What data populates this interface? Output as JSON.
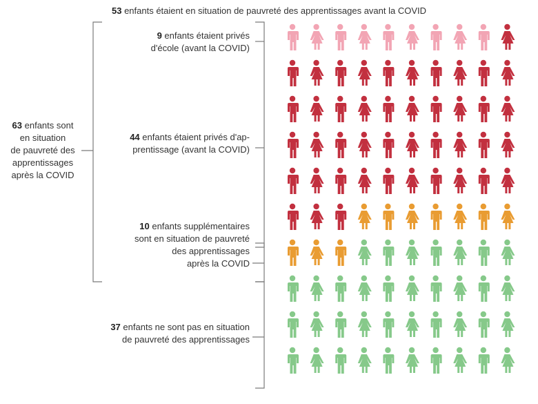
{
  "title": {
    "count": "53",
    "text": "enfants étaient en situation de pauvreté des apprentissages avant la COVID"
  },
  "groups": {
    "school": {
      "count": "9",
      "lines": [
        "enfants étaient privés",
        "d'école (avant la COVID)"
      ]
    },
    "learning": {
      "count": "44",
      "lines": [
        "enfants étaient privés d'ap-",
        "prentissage (avant la COVID)"
      ]
    },
    "additional": {
      "count": "10",
      "lines": [
        "enfants supplémentaires",
        "sont en situation de pauvreté",
        "des apprentissages",
        "après la COVID"
      ]
    },
    "not_poor": {
      "count": "37",
      "lines": [
        "enfants ne sont pas en situation",
        "de pauvreté des apprentissages"
      ]
    },
    "after": {
      "count": "63",
      "lines": [
        "enfants sont",
        "en situation",
        "de pauvreté des",
        "apprentissages",
        "après la COVID"
      ]
    }
  },
  "colors": {
    "out_of_school": "#f2a5b4",
    "learning_poor": "#c2303f",
    "additional": "#e99c32",
    "not_poor": "#86c98a",
    "bracket": "#7a7a7a"
  },
  "grid": {
    "columns": 10,
    "rows": 10,
    "category_counts": {
      "out_of_school": 9,
      "learning_poor": 44,
      "additional": 10,
      "not_poor": 37
    },
    "figure_pattern": [
      "male",
      "female",
      "male",
      "female",
      "male",
      "female",
      "male",
      "female",
      "male",
      "female"
    ]
  }
}
